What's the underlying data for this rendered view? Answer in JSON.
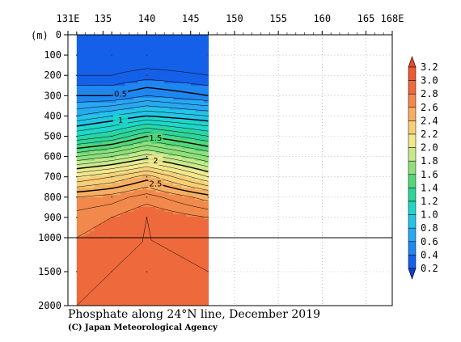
{
  "chart_data": {
    "type": "heatmap",
    "title": "Phosphate along 24°N line, December 2019",
    "credit": "(C) Japan Meteorological Agency",
    "x_ticks": [
      "131E",
      "135",
      "140",
      "145",
      "150",
      "155",
      "160",
      "165",
      "168E"
    ],
    "x_tick_values": [
      131,
      135,
      140,
      145,
      150,
      155,
      160,
      165,
      168
    ],
    "xlim": [
      131,
      168
    ],
    "y_unit": "(m)",
    "y_ticks_upper": [
      "0",
      "100",
      "200",
      "300",
      "400",
      "500",
      "600",
      "700",
      "800",
      "900",
      "1000"
    ],
    "y_ticks_lower": [
      "1500",
      "2000"
    ],
    "ylim": [
      0,
      2000
    ],
    "data_extent_lon": [
      132,
      147
    ],
    "contour_labels": [
      "0.5",
      "1",
      "1.5",
      "2",
      "2.5"
    ],
    "colorbar": {
      "levels": [
        "0.2",
        "0.4",
        "0.6",
        "0.8",
        "1.0",
        "1.2",
        "1.4",
        "1.6",
        "1.8",
        "2.0",
        "2.2",
        "2.4",
        "2.6",
        "2.8",
        "3.0",
        "3.2"
      ],
      "colors": [
        "#0a3fd6",
        "#1560e8",
        "#1f86ef",
        "#29a8f0",
        "#23c4e6",
        "#1fd6c8",
        "#2ed49a",
        "#55d67a",
        "#8ee07c",
        "#c7e98c",
        "#f1e88e",
        "#f6cf78",
        "#f5ae62",
        "#f2894c",
        "#ee6a3c",
        "#ec5a35",
        "#ea4a2c"
      ]
    },
    "profile_depths_m": [
      0,
      100,
      200,
      300,
      400,
      500,
      600,
      700,
      800,
      900,
      1000,
      1500,
      2000
    ],
    "stations": [
      {
        "lon": 132,
        "values": [
          0.2,
          0.2,
          0.3,
          0.5,
          0.8,
          1.2,
          1.7,
          2.2,
          2.6,
          2.75,
          2.8,
          2.85,
          2.9
        ]
      },
      {
        "lon": 136,
        "values": [
          0.2,
          0.2,
          0.3,
          0.5,
          0.9,
          1.3,
          1.8,
          2.3,
          2.65,
          2.8,
          2.85,
          2.9,
          2.95
        ]
      },
      {
        "lon": 140,
        "values": [
          0.2,
          0.2,
          0.35,
          0.6,
          1.0,
          1.5,
          1.95,
          2.45,
          2.75,
          2.9,
          2.9,
          2.95,
          2.95
        ]
      },
      {
        "lon": 147,
        "values": [
          0.2,
          0.2,
          0.3,
          0.5,
          0.9,
          1.3,
          1.7,
          2.1,
          2.55,
          2.8,
          2.85,
          2.9,
          2.9
        ]
      }
    ]
  }
}
